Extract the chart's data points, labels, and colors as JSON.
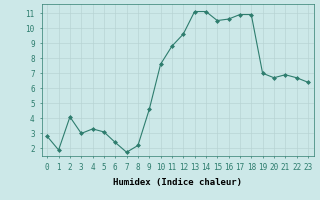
{
  "x": [
    0,
    1,
    2,
    3,
    4,
    5,
    6,
    7,
    8,
    9,
    10,
    11,
    12,
    13,
    14,
    15,
    16,
    17,
    18,
    19,
    20,
    21,
    22,
    23
  ],
  "y": [
    2.8,
    1.9,
    4.1,
    3.0,
    3.3,
    3.1,
    2.4,
    1.75,
    2.2,
    4.6,
    7.6,
    8.8,
    9.6,
    11.1,
    11.1,
    10.5,
    10.6,
    10.9,
    10.9,
    7.0,
    6.7,
    6.9,
    6.7,
    6.4
  ],
  "line_color": "#2e7d6e",
  "marker": "D",
  "marker_size": 2.0,
  "bg_color": "#cce8e8",
  "grid_color": "#b8d4d4",
  "xlabel": "Humidex (Indice chaleur)",
  "xlim": [
    -0.5,
    23.5
  ],
  "ylim": [
    1.5,
    11.6
  ],
  "yticks": [
    2,
    3,
    4,
    5,
    6,
    7,
    8,
    9,
    10,
    11
  ],
  "xticks": [
    0,
    1,
    2,
    3,
    4,
    5,
    6,
    7,
    8,
    9,
    10,
    11,
    12,
    13,
    14,
    15,
    16,
    17,
    18,
    19,
    20,
    21,
    22,
    23
  ],
  "label_fontsize": 6.5,
  "tick_fontsize": 5.5
}
